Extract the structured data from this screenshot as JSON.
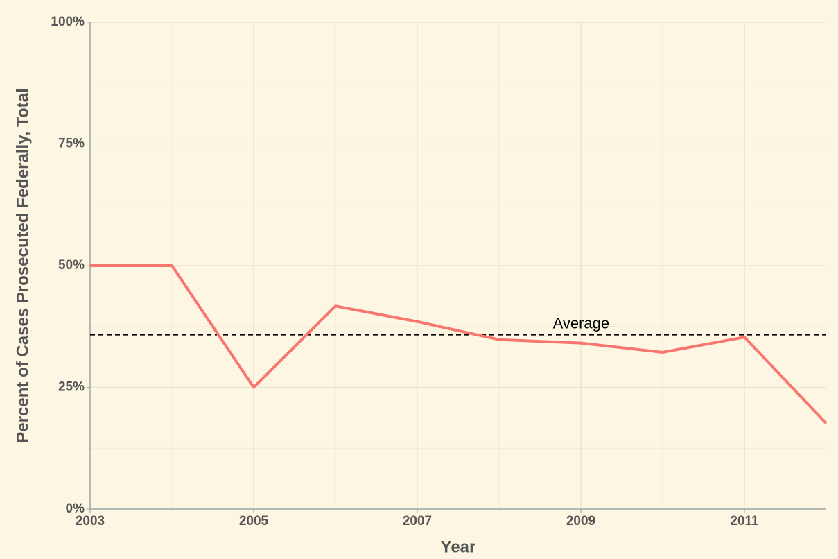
{
  "chart_data": {
    "type": "line",
    "x_label": "Year",
    "y_label": "Percent of Cases Prosecuted Federally, Total",
    "x": [
      2003,
      2004,
      2005,
      2006,
      2007,
      2008,
      2009,
      2010,
      2011,
      2012
    ],
    "series": [
      {
        "name": "Total",
        "color": "#f8766d",
        "values": [
          50,
          50,
          25,
          41.7,
          38.5,
          34.8,
          34.1,
          32.2,
          35.3,
          17.6
        ]
      }
    ],
    "xlim": [
      2003,
      2012
    ],
    "xticks": [
      2003,
      2005,
      2007,
      2009,
      2011
    ],
    "ylim": [
      0,
      100
    ],
    "yticks": [
      {
        "value": 0,
        "label": "0%"
      },
      {
        "value": 25,
        "label": "25%"
      },
      {
        "value": 50,
        "label": "50%"
      },
      {
        "value": 75,
        "label": "75%"
      },
      {
        "value": 100,
        "label": "100%"
      }
    ],
    "average": {
      "label": "Average",
      "value": 35.8
    },
    "grid": true
  }
}
